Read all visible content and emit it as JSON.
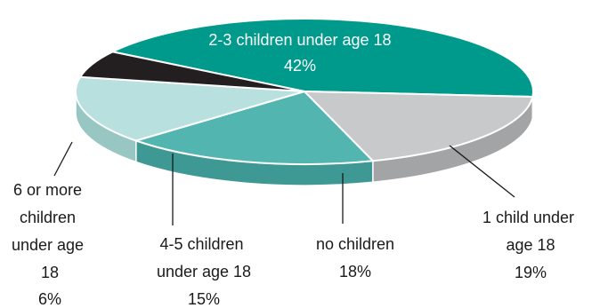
{
  "chart_data": {
    "type": "pie",
    "style": "3d",
    "slices": [
      {
        "label": "2-3 children under age 18",
        "value": 42,
        "value_label": "42%",
        "color": "#009a8d",
        "side_color": "#00766c"
      },
      {
        "label": "1 child under age 18",
        "value": 19,
        "value_label": "19%",
        "color": "#c8c9ca",
        "side_color": "#a3a4a6"
      },
      {
        "label": "no children",
        "value": 18,
        "value_label": "18%",
        "color": "#52b5b0",
        "side_color": "#3e9893"
      },
      {
        "label": "4-5 children under age 18",
        "value": 15,
        "value_label": "15%",
        "color": "#b7e0de",
        "side_color": "#98c6c3"
      },
      {
        "label": "6 or more children under age 18",
        "value": 6,
        "value_label": "6%",
        "color": "#231f20",
        "side_color": "#0c0a0b"
      }
    ]
  }
}
